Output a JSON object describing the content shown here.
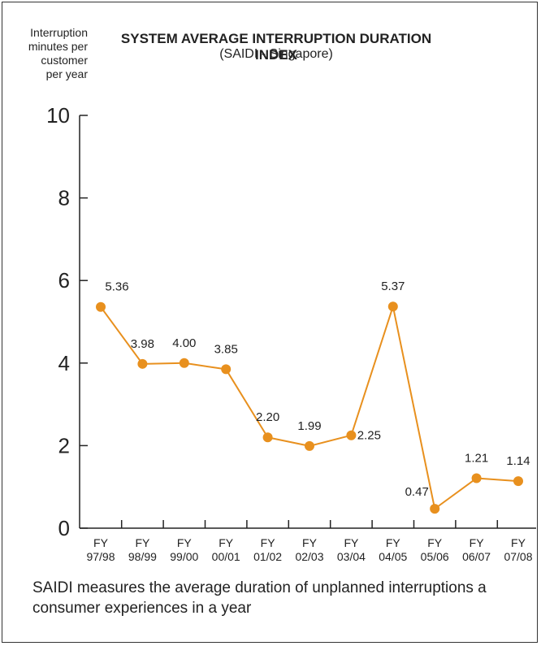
{
  "chart_data": {
    "type": "line",
    "title": "SYSTEM AVERAGE INTERRUPTION DURATION INDEX",
    "subtitle": "(SAIDI - Singapore)",
    "ylabel_lines": [
      "Interruption",
      "minutes per",
      "customer",
      "per year"
    ],
    "xlabel": "",
    "ylim": [
      0,
      10
    ],
    "yticks": [
      0,
      2,
      4,
      6,
      8,
      10
    ],
    "categories": [
      [
        "FY",
        "97/98"
      ],
      [
        "FY",
        "98/99"
      ],
      [
        "FY",
        "99/00"
      ],
      [
        "FY",
        "00/01"
      ],
      [
        "FY",
        "01/02"
      ],
      [
        "FY",
        "02/03"
      ],
      [
        "FY",
        "03/04"
      ],
      [
        "FY",
        "04/05"
      ],
      [
        "FY",
        "05/06"
      ],
      [
        "FY",
        "06/07"
      ],
      [
        "FY",
        "07/08"
      ]
    ],
    "values": [
      5.36,
      3.98,
      4.0,
      3.85,
      2.2,
      1.99,
      2.25,
      5.37,
      0.47,
      1.21,
      1.14
    ],
    "data_labels": [
      "5.36",
      "3.98",
      "4.00",
      "3.85",
      "2.20",
      "1.99",
      "2.25",
      "5.37",
      "0.47",
      "1.21",
      "1.14"
    ],
    "grid": false,
    "legend": "none",
    "colors": {
      "series": "#E8901E",
      "axis": "#222222"
    }
  },
  "caption": "SAIDI measures the average duration of unplanned interruptions a consumer experiences in a year"
}
